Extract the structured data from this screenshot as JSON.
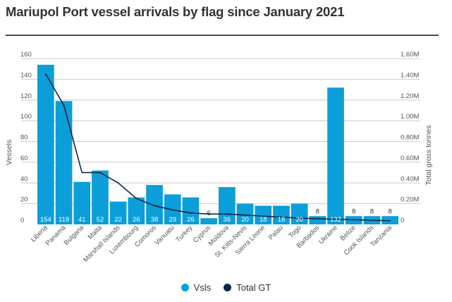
{
  "title": "Mariupol Port vessel arrivals by flag since January 2021",
  "colors": {
    "bar": "#0C9ED8",
    "line": "#0E2744",
    "grid": "#cccccc",
    "text": "#555555",
    "label": "#ffffff"
  },
  "legend": {
    "vsls": "Vsls",
    "total_gt": "Total GT"
  },
  "chart_data": {
    "type": "bar",
    "categories": [
      "Liberia",
      "Panama",
      "Bulgaria",
      "Malta",
      "Marshall Islands",
      "Luxembourg",
      "Comoros",
      "Vanuatu",
      "Turkey",
      "Cyprus",
      "Moldova",
      "St. Kitts-Nevis",
      "Sierra Leone",
      "Palau",
      "Togo",
      "Barbados",
      "Ukraine",
      "Belize",
      "Cook Islands",
      "Tanzania"
    ],
    "ylabel": "Vessels",
    "y2label": "Total gross tonnes",
    "ylim": [
      0,
      160
    ],
    "y2lim": [
      0,
      1600000
    ],
    "yticks": [
      "0",
      "20",
      "40",
      "60",
      "80",
      "100",
      "120",
      "140",
      "160"
    ],
    "y2ticks": [
      "0",
      "0.20M",
      "0.40M",
      "0.60M",
      "0.80M",
      "1.00M",
      "1.20M",
      "1.40M",
      "1.60M"
    ],
    "series": [
      {
        "name": "Vsls",
        "type": "bar",
        "values": [
          154,
          119,
          41,
          52,
          22,
          26,
          38,
          29,
          26,
          6,
          36,
          20,
          18,
          18,
          20,
          8,
          132,
          8,
          8,
          8
        ],
        "labels": [
          "154",
          "119",
          "41",
          "52",
          "22",
          "26",
          "38",
          "29",
          "26",
          "6",
          "36",
          "20",
          "18",
          "18",
          "20",
          "8",
          "132",
          "8",
          "8",
          "8"
        ]
      },
      {
        "name": "Total GT",
        "type": "line",
        "values": [
          1450000,
          1150000,
          500000,
          500000,
          400000,
          250000,
          180000,
          140000,
          110000,
          100000,
          100000,
          90000,
          80000,
          70000,
          60000,
          55000,
          50000,
          45000,
          40000,
          35000
        ]
      }
    ],
    "grid": true,
    "legend_position": "bottom"
  }
}
